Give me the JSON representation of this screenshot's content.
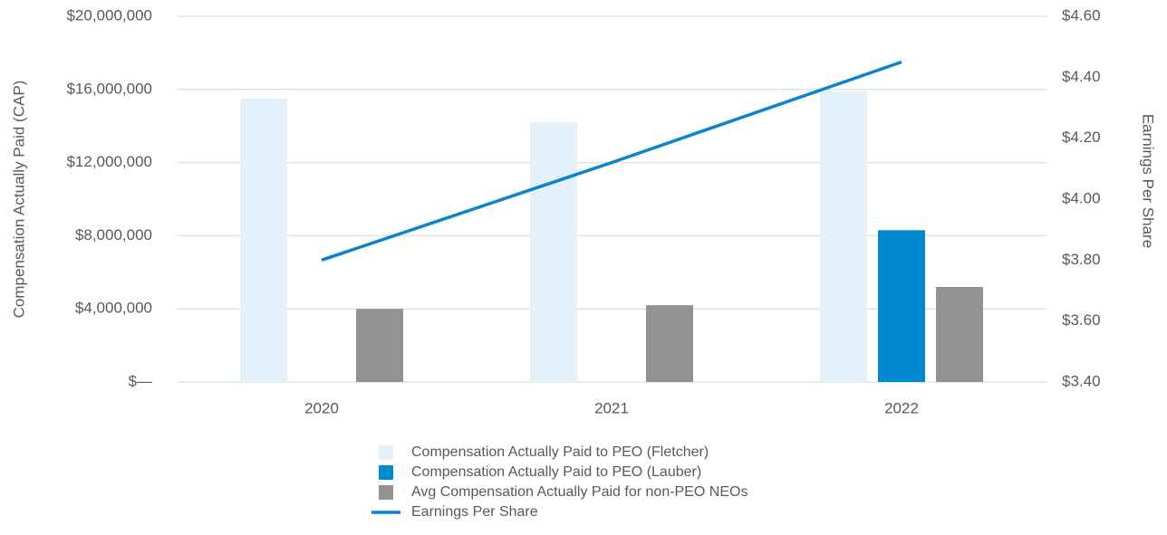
{
  "chart_data": {
    "type": "bar",
    "y_label": "Compensation Actually Paid (CAP)",
    "y2_label": "Earnings Per Share",
    "categories": [
      "2020",
      "2021",
      "2022"
    ],
    "series": [
      {
        "name": "Compensation Actually Paid to PEO (Fletcher)",
        "type": "bar",
        "color": "#e3f1fa",
        "values": [
          15500000,
          14200000,
          15900000
        ]
      },
      {
        "name": "Compensation Actually Paid to PEO (Lauber)",
        "type": "bar",
        "color": "#0088d1",
        "values": [
          null,
          null,
          8300000
        ]
      },
      {
        "name": "Avg Compensation Actually Paid for non-PEO NEOs",
        "type": "bar",
        "color": "#939393",
        "values": [
          4000000,
          4200000,
          5200000
        ]
      },
      {
        "name": "Earnings Per Share",
        "type": "line",
        "axis": "y2",
        "color": "#0a84c8",
        "values": [
          3.8,
          4.12,
          4.45
        ]
      }
    ],
    "ylim": [
      0,
      20000000
    ],
    "yticks": [
      {
        "value": 0,
        "label": "$—"
      },
      {
        "value": 4000000,
        "label": "$4,000,000"
      },
      {
        "value": 8000000,
        "label": "$8,000,000"
      },
      {
        "value": 12000000,
        "label": "$12,000,000"
      },
      {
        "value": 16000000,
        "label": "$16,000,000"
      },
      {
        "value": 20000000,
        "label": "$20,000,000"
      }
    ],
    "y2lim": [
      3.4,
      4.6
    ],
    "y2ticks": [
      {
        "value": 3.4,
        "label": "$3.40"
      },
      {
        "value": 3.6,
        "label": "$3.60"
      },
      {
        "value": 3.8,
        "label": "$3.80"
      },
      {
        "value": 4.0,
        "label": "$4.00"
      },
      {
        "value": 4.2,
        "label": "$4.20"
      },
      {
        "value": 4.4,
        "label": "$4.40"
      },
      {
        "value": 4.6,
        "label": "$4.60"
      }
    ],
    "grid": true
  }
}
